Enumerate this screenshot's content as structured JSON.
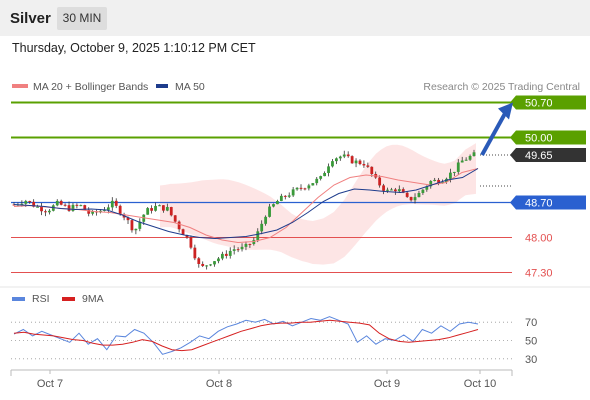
{
  "header": {
    "symbol": "Silver",
    "timeframe": "30 MIN",
    "datetime": "Thursday, October 9, 2025 1:10:12 PM CET"
  },
  "legend": {
    "ma20": "MA 20 + Bollinger Bands",
    "ma50": "MA 50",
    "credit": "Research © 2025 Trading Central",
    "rsi": "RSI",
    "rsi_ma": "9MA"
  },
  "colors": {
    "ma20": "#f08080",
    "ma50": "#1e3c8c",
    "bollinger_band": "#fde0e0",
    "resistance": "#5aa000",
    "pivot": "#2a60d0",
    "support": "#e35050",
    "current": "#333333",
    "rsi": "#5a86dd",
    "rsi_ma": "#d62020",
    "arrow": "#2a5ab8"
  },
  "chart_data": [
    {
      "type": "candlestick",
      "ylim": [
        47.15,
        50.95
      ],
      "x_labels": [
        "Oct 7",
        "Oct 8",
        "Oct 9",
        "Oct 10"
      ],
      "levels": [
        {
          "value": "50.70",
          "kind": "resistance"
        },
        {
          "value": "50.00",
          "kind": "resistance"
        },
        {
          "value": "49.65",
          "kind": "current"
        },
        {
          "value": "48.70",
          "kind": "pivot"
        },
        {
          "value": "48.00",
          "kind": "support"
        },
        {
          "value": "47.30",
          "kind": "support"
        }
      ],
      "price_path": [
        48.66,
        48.75,
        48.62,
        48.54,
        48.68,
        48.58,
        48.65,
        48.45,
        48.55,
        48.68,
        48.45,
        48.13,
        48.52,
        48.62,
        48.57,
        48.22,
        47.93,
        47.37,
        47.52,
        47.62,
        47.77,
        47.78,
        47.96,
        48.48,
        48.72,
        48.86,
        48.97,
        49.08,
        49.18,
        49.58,
        49.63,
        49.52,
        49.48,
        49.15,
        48.92,
        48.98,
        48.74,
        48.88,
        49.12,
        49.15,
        49.3,
        49.55,
        49.65
      ],
      "ma20_path": [
        48.62,
        48.64,
        48.61,
        48.58,
        48.56,
        48.52,
        48.5,
        48.45,
        48.4,
        48.35,
        48.3,
        48.2,
        48.05,
        47.95,
        47.9,
        47.92,
        48.0,
        48.2,
        48.5,
        48.8,
        49.05,
        49.2,
        49.25,
        49.22,
        49.15,
        49.1,
        49.05,
        49.1,
        49.3,
        49.38
      ],
      "ma50_path": [
        48.66,
        48.64,
        48.62,
        48.58,
        48.56,
        48.57,
        48.55,
        48.45,
        48.32,
        48.22,
        48.12,
        48.05,
        48.0,
        47.98,
        48.0,
        48.02,
        48.08,
        48.15,
        48.3,
        48.5,
        48.72,
        48.88,
        48.97,
        48.95,
        48.92,
        48.9,
        48.95,
        49.05,
        49.15,
        49.2,
        49.38
      ],
      "forecast_arrow": {
        "from": 49.65,
        "to": 50.7
      }
    },
    {
      "type": "line",
      "title": "RSI",
      "ylim": [
        20,
        80
      ],
      "y_ticks": [
        "70",
        "50",
        "30"
      ],
      "series": [
        {
          "name": "RSI",
          "values": [
            57,
            62,
            55,
            60,
            56,
            52,
            48,
            58,
            46,
            52,
            40,
            55,
            54,
            62,
            58,
            48,
            35,
            38,
            42,
            48,
            55,
            52,
            60,
            65,
            68,
            72,
            70,
            73,
            68,
            71,
            66,
            70,
            74,
            72,
            76,
            72,
            68,
            48,
            55,
            46,
            52,
            50,
            56,
            49,
            62,
            58,
            66,
            60,
            68,
            70,
            68
          ]
        },
        {
          "name": "9MA",
          "values": [
            58,
            59,
            57,
            56,
            55,
            53,
            51,
            50,
            47,
            45,
            45,
            46,
            48,
            51,
            49,
            44,
            40,
            39,
            40,
            44,
            48,
            52,
            56,
            60,
            63,
            66,
            68,
            69,
            69,
            70,
            70,
            71,
            72,
            71,
            70,
            69,
            67,
            58,
            52,
            49,
            48,
            49,
            50,
            51,
            53,
            56,
            59,
            62
          ]
        }
      ]
    }
  ]
}
